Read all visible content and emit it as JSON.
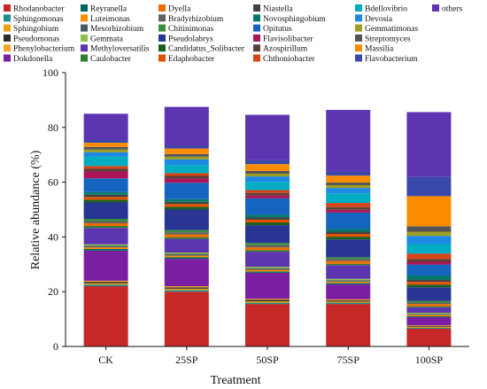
{
  "chart_data": {
    "type": "bar",
    "stacked": true,
    "xlabel": "Treatment",
    "ylabel": "Relative abundance (%)",
    "ylim": [
      0,
      100
    ],
    "yticks": [
      0,
      20,
      40,
      60,
      80,
      100
    ],
    "categories": [
      "CK",
      "25SP",
      "50SP",
      "75SP",
      "100SP"
    ],
    "legend_position": "top",
    "series": [
      {
        "name": "Rhodanobacter",
        "color": "#c62828",
        "values": [
          22.0,
          20.0,
          15.5,
          15.5,
          6.5
        ]
      },
      {
        "name": "Sphingomonas",
        "color": "#1e8c8c",
        "values": [
          0.6,
          0.6,
          0.5,
          0.5,
          0.3
        ]
      },
      {
        "name": "Sphingobium",
        "color": "#f39c12",
        "values": [
          0.5,
          0.5,
          0.5,
          0.4,
          0.3
        ]
      },
      {
        "name": "Pseudomonas",
        "color": "#2b2b2b",
        "values": [
          0.5,
          0.5,
          0.5,
          0.4,
          0.3
        ]
      },
      {
        "name": "Phenylobacterium",
        "color": "#f5a623",
        "values": [
          0.4,
          0.4,
          0.4,
          0.4,
          0.3
        ]
      },
      {
        "name": "Dokdonella",
        "color": "#7b1fa2",
        "values": [
          11.0,
          10.0,
          9.5,
          5.5,
          3.0
        ]
      },
      {
        "name": "Reyranella",
        "color": "#00695c",
        "values": [
          0.6,
          0.6,
          0.5,
          0.5,
          0.3
        ]
      },
      {
        "name": "Luteimonas",
        "color": "#fb8c00",
        "values": [
          0.6,
          0.6,
          0.6,
          0.5,
          0.5
        ]
      },
      {
        "name": "Mesorhizobium",
        "color": "#455a64",
        "values": [
          0.6,
          0.6,
          0.6,
          0.5,
          0.4
        ]
      },
      {
        "name": "Gemmata",
        "color": "#8bc34a",
        "values": [
          0.5,
          0.5,
          0.5,
          0.5,
          0.4
        ]
      },
      {
        "name": "Methyloversatilis",
        "color": "#5e35b1",
        "values": [
          6.0,
          5.0,
          5.5,
          5.0,
          2.0
        ]
      },
      {
        "name": "Caulobacter",
        "color": "#2e7d32",
        "values": [
          0.7,
          0.6,
          0.6,
          0.5,
          0.4
        ]
      },
      {
        "name": "Dyella",
        "color": "#ef6c00",
        "values": [
          1.0,
          1.0,
          1.0,
          1.0,
          0.8
        ]
      },
      {
        "name": "Bradyrhizobium",
        "color": "#616161",
        "values": [
          0.8,
          0.8,
          0.8,
          0.7,
          0.5
        ]
      },
      {
        "name": "Chitinimonas",
        "color": "#388e3c",
        "values": [
          0.8,
          0.8,
          0.8,
          0.7,
          0.6
        ]
      },
      {
        "name": "Pseudolabrys",
        "color": "#283593",
        "values": [
          6.0,
          7.5,
          6.5,
          6.5,
          5.0
        ]
      },
      {
        "name": "Candidatus_Solibacter",
        "color": "#1b5e20",
        "values": [
          1.0,
          1.0,
          1.0,
          1.0,
          1.0
        ]
      },
      {
        "name": "Edaphobacter",
        "color": "#e65100",
        "values": [
          1.0,
          1.0,
          1.0,
          1.0,
          1.0
        ]
      },
      {
        "name": "Niastella",
        "color": "#424242",
        "values": [
          0.8,
          0.8,
          0.8,
          0.8,
          0.8
        ]
      },
      {
        "name": "Novosphingobium",
        "color": "#00796b",
        "values": [
          1.0,
          1.0,
          1.0,
          1.0,
          1.5
        ]
      },
      {
        "name": "Opitutus",
        "color": "#1565c0",
        "values": [
          5.0,
          6.0,
          6.0,
          6.0,
          4.0
        ]
      },
      {
        "name": "Flavisolibacter",
        "color": "#ad1457",
        "values": [
          2.5,
          1.5,
          1.0,
          1.0,
          1.0
        ]
      },
      {
        "name": "Azospirillum",
        "color": "#5d4037",
        "values": [
          1.0,
          1.0,
          1.0,
          1.0,
          1.0
        ]
      },
      {
        "name": "Chthoniobacter",
        "color": "#d84315",
        "values": [
          1.0,
          1.0,
          1.0,
          1.5,
          2.0
        ]
      },
      {
        "name": "Bdellovibrio",
        "color": "#00acc1",
        "values": [
          3.5,
          3.0,
          3.0,
          3.5,
          3.5
        ]
      },
      {
        "name": "Devosia",
        "color": "#1e88e5",
        "values": [
          1.5,
          2.0,
          2.0,
          2.0,
          3.0
        ]
      },
      {
        "name": "Gemmatimonas",
        "color": "#9e9d24",
        "values": [
          1.0,
          1.0,
          1.0,
          1.0,
          1.5
        ]
      },
      {
        "name": "Streptomyces",
        "color": "#555555",
        "values": [
          1.0,
          1.0,
          1.0,
          1.0,
          2.0
        ]
      },
      {
        "name": "Massilia",
        "color": "#fb8c00",
        "values": [
          1.5,
          2.0,
          2.5,
          2.5,
          11.0
        ]
      },
      {
        "name": "Flavobacterium",
        "color": "#3949ab",
        "values": [
          1.0,
          1.0,
          1.5,
          1.5,
          7.0
        ]
      },
      {
        "name": "others",
        "color": "#5e35b1",
        "values": [
          9.6,
          14.2,
          16.5,
          22.5,
          23.7
        ]
      }
    ]
  }
}
